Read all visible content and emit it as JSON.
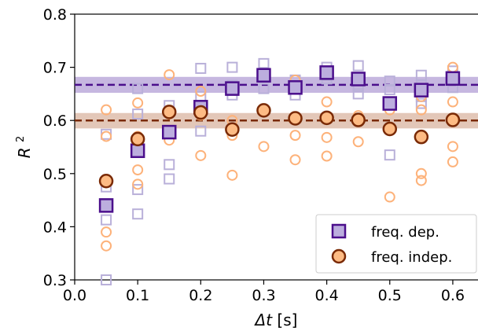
{
  "chart_data": {
    "type": "scatter",
    "xlabel_symbol": "Δt",
    "xlabel_unit": "[s]",
    "ylabel_base": "R",
    "ylabel_exp": "2",
    "xlim": [
      0.0,
      0.64
    ],
    "ylim": [
      0.3,
      0.8
    ],
    "xticks": [
      "0.0",
      "0.1",
      "0.2",
      "0.3",
      "0.4",
      "0.5",
      "0.6"
    ],
    "yticks": [
      "0.3",
      "0.4",
      "0.5",
      "0.6",
      "0.7",
      "0.8"
    ],
    "legend_position": "lower-right",
    "series": [
      {
        "name": "freq. dep.",
        "marker": "square",
        "color": "#4b0f8c",
        "face_color": "#bcaede",
        "mean_line": 0.667,
        "band": [
          0.652,
          0.682
        ],
        "band_color": "#b39fd6",
        "points": [
          {
            "x": 0.05,
            "y": 0.44
          },
          {
            "x": 0.1,
            "y": 0.543
          },
          {
            "x": 0.15,
            "y": 0.578
          },
          {
            "x": 0.2,
            "y": 0.625
          },
          {
            "x": 0.25,
            "y": 0.66
          },
          {
            "x": 0.3,
            "y": 0.685
          },
          {
            "x": 0.35,
            "y": 0.662
          },
          {
            "x": 0.4,
            "y": 0.69
          },
          {
            "x": 0.45,
            "y": 0.678
          },
          {
            "x": 0.5,
            "y": 0.632
          },
          {
            "x": 0.55,
            "y": 0.657
          },
          {
            "x": 0.6,
            "y": 0.679
          }
        ],
        "faint_points": [
          {
            "x": 0.05,
            "y": 0.574
          },
          {
            "x": 0.05,
            "y": 0.475
          },
          {
            "x": 0.05,
            "y": 0.413
          },
          {
            "x": 0.05,
            "y": 0.3
          },
          {
            "x": 0.1,
            "y": 0.66
          },
          {
            "x": 0.1,
            "y": 0.612
          },
          {
            "x": 0.1,
            "y": 0.47
          },
          {
            "x": 0.1,
            "y": 0.424
          },
          {
            "x": 0.15,
            "y": 0.628
          },
          {
            "x": 0.15,
            "y": 0.517
          },
          {
            "x": 0.15,
            "y": 0.49
          },
          {
            "x": 0.2,
            "y": 0.698
          },
          {
            "x": 0.2,
            "y": 0.645
          },
          {
            "x": 0.2,
            "y": 0.58
          },
          {
            "x": 0.25,
            "y": 0.7
          },
          {
            "x": 0.25,
            "y": 0.666
          },
          {
            "x": 0.25,
            "y": 0.648
          },
          {
            "x": 0.3,
            "y": 0.707
          },
          {
            "x": 0.3,
            "y": 0.69
          },
          {
            "x": 0.3,
            "y": 0.66
          },
          {
            "x": 0.35,
            "y": 0.676
          },
          {
            "x": 0.35,
            "y": 0.66
          },
          {
            "x": 0.35,
            "y": 0.648
          },
          {
            "x": 0.4,
            "y": 0.7
          },
          {
            "x": 0.4,
            "y": 0.685
          },
          {
            "x": 0.4,
            "y": 0.678
          },
          {
            "x": 0.45,
            "y": 0.703
          },
          {
            "x": 0.45,
            "y": 0.664
          },
          {
            "x": 0.45,
            "y": 0.65
          },
          {
            "x": 0.5,
            "y": 0.674
          },
          {
            "x": 0.5,
            "y": 0.658
          },
          {
            "x": 0.5,
            "y": 0.535
          },
          {
            "x": 0.55,
            "y": 0.685
          },
          {
            "x": 0.55,
            "y": 0.666
          },
          {
            "x": 0.55,
            "y": 0.645
          },
          {
            "x": 0.55,
            "y": 0.632
          },
          {
            "x": 0.6,
            "y": 0.693
          },
          {
            "x": 0.6,
            "y": 0.68
          },
          {
            "x": 0.6,
            "y": 0.662
          }
        ]
      },
      {
        "name": "freq. indep.",
        "marker": "circle",
        "color": "#7a2a05",
        "face_color": "#fdbb84",
        "mean_line": 0.6,
        "band": [
          0.585,
          0.614
        ],
        "band_color": "#d9b4a0",
        "points": [
          {
            "x": 0.05,
            "y": 0.486
          },
          {
            "x": 0.1,
            "y": 0.565
          },
          {
            "x": 0.15,
            "y": 0.616
          },
          {
            "x": 0.2,
            "y": 0.615
          },
          {
            "x": 0.25,
            "y": 0.583
          },
          {
            "x": 0.3,
            "y": 0.619
          },
          {
            "x": 0.35,
            "y": 0.604
          },
          {
            "x": 0.4,
            "y": 0.605
          },
          {
            "x": 0.45,
            "y": 0.601
          },
          {
            "x": 0.5,
            "y": 0.584
          },
          {
            "x": 0.55,
            "y": 0.569
          },
          {
            "x": 0.6,
            "y": 0.601
          }
        ],
        "faint_points": [
          {
            "x": 0.05,
            "y": 0.62
          },
          {
            "x": 0.05,
            "y": 0.57
          },
          {
            "x": 0.05,
            "y": 0.39
          },
          {
            "x": 0.05,
            "y": 0.364
          },
          {
            "x": 0.1,
            "y": 0.633
          },
          {
            "x": 0.1,
            "y": 0.57
          },
          {
            "x": 0.1,
            "y": 0.507
          },
          {
            "x": 0.1,
            "y": 0.48
          },
          {
            "x": 0.15,
            "y": 0.686
          },
          {
            "x": 0.15,
            "y": 0.612
          },
          {
            "x": 0.15,
            "y": 0.563
          },
          {
            "x": 0.2,
            "y": 0.655
          },
          {
            "x": 0.2,
            "y": 0.61
          },
          {
            "x": 0.2,
            "y": 0.534
          },
          {
            "x": 0.25,
            "y": 0.6
          },
          {
            "x": 0.25,
            "y": 0.572
          },
          {
            "x": 0.25,
            "y": 0.497
          },
          {
            "x": 0.3,
            "y": 0.62
          },
          {
            "x": 0.3,
            "y": 0.551
          },
          {
            "x": 0.35,
            "y": 0.676
          },
          {
            "x": 0.35,
            "y": 0.572
          },
          {
            "x": 0.35,
            "y": 0.526
          },
          {
            "x": 0.4,
            "y": 0.635
          },
          {
            "x": 0.4,
            "y": 0.568
          },
          {
            "x": 0.4,
            "y": 0.533
          },
          {
            "x": 0.45,
            "y": 0.609
          },
          {
            "x": 0.45,
            "y": 0.56
          },
          {
            "x": 0.5,
            "y": 0.62
          },
          {
            "x": 0.5,
            "y": 0.456
          },
          {
            "x": 0.55,
            "y": 0.645
          },
          {
            "x": 0.55,
            "y": 0.62
          },
          {
            "x": 0.55,
            "y": 0.5
          },
          {
            "x": 0.55,
            "y": 0.487
          },
          {
            "x": 0.6,
            "y": 0.7
          },
          {
            "x": 0.6,
            "y": 0.635
          },
          {
            "x": 0.6,
            "y": 0.551
          },
          {
            "x": 0.6,
            "y": 0.522
          }
        ]
      }
    ]
  }
}
